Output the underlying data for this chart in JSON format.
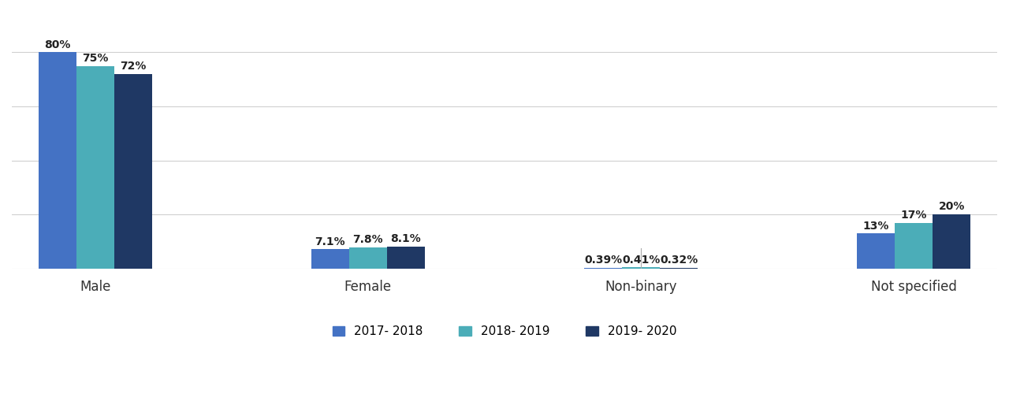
{
  "categories": [
    "Male",
    "Female",
    "Non-binary",
    "Not specified"
  ],
  "series": [
    {
      "label": "2017- 2018",
      "color": "#4472c4",
      "values": [
        80,
        7.1,
        0.39,
        13
      ]
    },
    {
      "label": "2018- 2019",
      "color": "#4badb8",
      "values": [
        75,
        7.8,
        0.41,
        17
      ]
    },
    {
      "label": "2019- 2020",
      "color": "#1f3864",
      "values": [
        72,
        8.1,
        0.32,
        20
      ]
    }
  ],
  "bar_labels": [
    [
      "80%",
      "7.1%",
      "0.39%",
      "13%"
    ],
    [
      "75%",
      "7.8%",
      "0.41%",
      "17%"
    ],
    [
      "72%",
      "8.1%",
      "0.32%",
      "20%"
    ]
  ],
  "ylim": [
    0,
    95
  ],
  "background_color": "#ffffff",
  "grid_color": "#d0d0d0",
  "bar_width": 0.25,
  "label_fontsize": 10,
  "tick_fontsize": 12,
  "legend_fontsize": 11,
  "grid_lines": [
    20,
    40,
    60,
    80
  ]
}
